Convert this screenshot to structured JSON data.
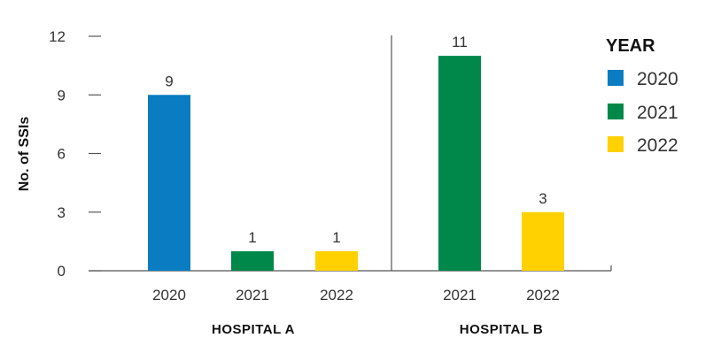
{
  "chart_data": {
    "type": "bar",
    "ylabel": "No. of SSIs",
    "ylim": [
      0,
      12
    ],
    "yticks": [
      0,
      3,
      6,
      9,
      12
    ],
    "grid": false,
    "legend_position": "top-right",
    "legend": {
      "title": "YEAR",
      "entries": [
        {
          "label": "2020",
          "color": "#0A7CC1"
        },
        {
          "label": "2021",
          "color": "#00884A"
        },
        {
          "label": "2022",
          "color": "#FFD100"
        }
      ]
    },
    "groups": [
      {
        "name": "HOSPITAL A",
        "bars": [
          {
            "category": "2020",
            "value": 9,
            "color": "#0A7CC1"
          },
          {
            "category": "2021",
            "value": 1,
            "color": "#00884A"
          },
          {
            "category": "2022",
            "value": 1,
            "color": "#FFD100"
          }
        ]
      },
      {
        "name": "HOSPITAL B",
        "bars": [
          {
            "category": "2021",
            "value": 11,
            "color": "#00884A"
          },
          {
            "category": "2022",
            "value": 3,
            "color": "#FFD100"
          }
        ]
      }
    ]
  }
}
